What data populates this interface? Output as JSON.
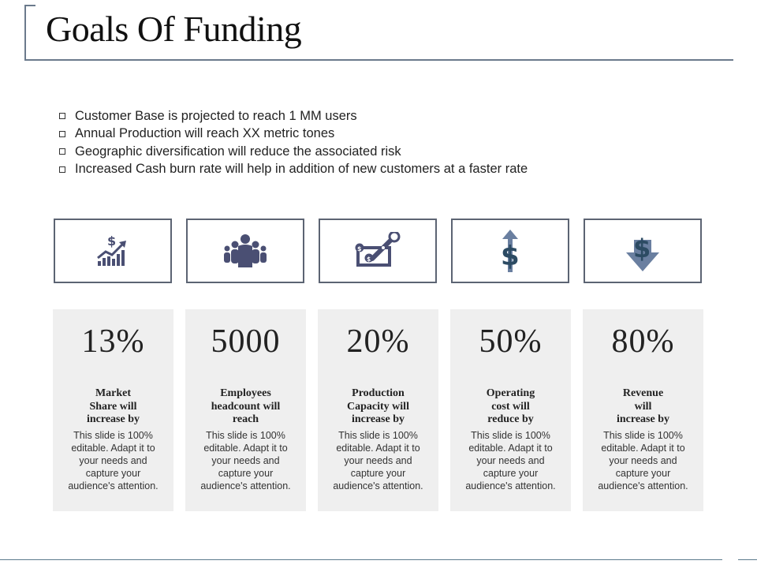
{
  "title": "Goals Of Funding",
  "bullets": [
    "Customer Base is projected to reach 1 MM users",
    "Annual Production will reach XX metric tones",
    "Geographic diversification will reduce the associated risk",
    "Increased Cash burn rate will help in addition of new customers at a faster rate"
  ],
  "colors": {
    "icon": "#4a4f73",
    "card_bg": "#efefef",
    "border": "#5c6473"
  },
  "cards": [
    {
      "icon": "rising-dollar-chart-icon",
      "value": "13%",
      "label": "Market\nShare will\nincrease by",
      "desc": "This slide is 100%\neditable.  Adapt it to\nyour needs and\ncapture your\naudience's attention."
    },
    {
      "icon": "team-group-icon",
      "value": "5000",
      "label": "Employees\nheadcount will\nreach",
      "desc": "This slide is 100%\neditable.  Adapt it to\nyour needs and\ncapture your\naudience's attention."
    },
    {
      "icon": "production-wrench-money-icon",
      "value": "20%",
      "label": "Production\nCapacity will\nincrease by",
      "desc": "This slide is 100%\neditable.  Adapt it to\nyour needs and\ncapture your\naudience's attention."
    },
    {
      "icon": "dollar-up-arrow-icon",
      "value": "50%",
      "label": "Operating\ncost will\nreduce by",
      "desc": "This slide is 100%\neditable.  Adapt it to\nyour needs and\ncapture your\naudience's attention."
    },
    {
      "icon": "dollar-down-arrow-icon",
      "value": "80%",
      "label": "Revenue\nwill\nincrease by",
      "desc": "This slide is 100%\neditable.  Adapt it to\nyour needs and\ncapture your\naudience's attention."
    }
  ]
}
